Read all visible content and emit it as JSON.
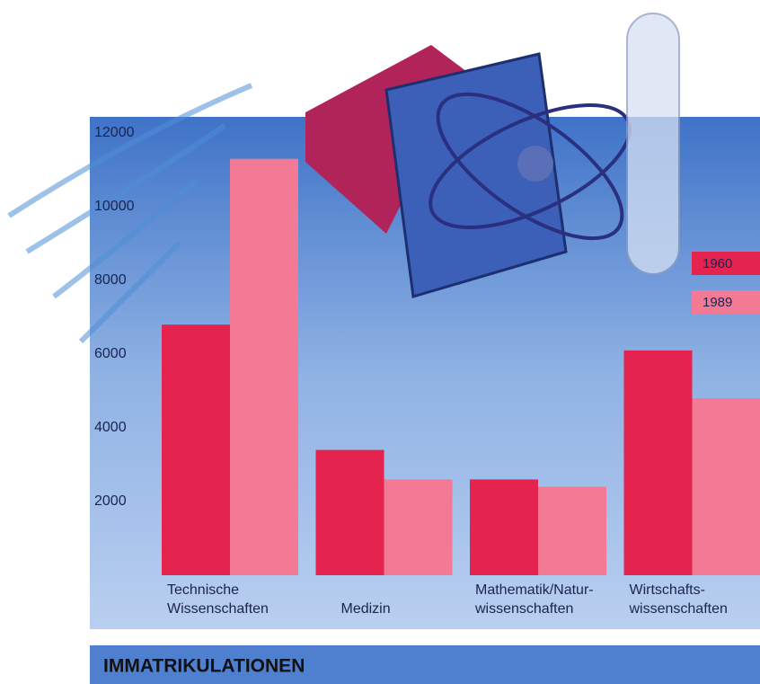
{
  "chart_data": {
    "type": "bar",
    "title": "IMMATRIKULATIONEN",
    "categories": [
      "Technische\nWissenschaften",
      "Medizin",
      "Mathematik/Natur-\nwissenschaften",
      "Wirtschafts-\nwissenschaften"
    ],
    "series": [
      {
        "name": "1960",
        "color": "#e4234f",
        "values": [
          6800,
          3400,
          2600,
          6100
        ]
      },
      {
        "name": "1989",
        "color": "#f27a95",
        "values": [
          11300,
          2600,
          2400,
          4800
        ]
      }
    ],
    "ylim": [
      0,
      12000
    ],
    "yticks": [
      2000,
      4000,
      6000,
      8000,
      10000,
      12000
    ],
    "grid": false,
    "legend": "right"
  }
}
